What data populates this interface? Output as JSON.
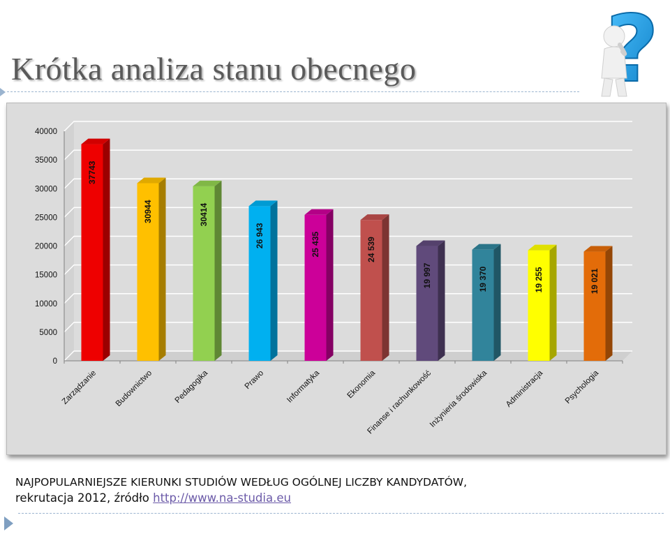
{
  "slide": {
    "title": "Krótka analiza stanu obecnego",
    "caption_line1": "NAJPOPULARNIEJSZE KIERUNKI STUDIÓW WEDŁUG OGÓLNEJ LICZBY KANDYDATÓW,",
    "caption_line2_text": "rekrutacja 2012, źródło ",
    "caption_link": "http://www.na-studia.eu",
    "question_mark": "?"
  },
  "colors": {
    "title": "#5a5a5a",
    "accent_line": "#9bb4cf",
    "chart_background": "#dcdcdc",
    "link": "#6b5aa8",
    "question_mark": "#1d9be0"
  },
  "chart_data": {
    "type": "bar",
    "style": "3d-columns",
    "categories": [
      "Zarządzanie",
      "Budownictwo",
      "Pedagogika",
      "Prawo",
      "Informatyka",
      "Ekonomia",
      "Finanse i rachunkowość",
      "Inżynieria środowiska",
      "Administracja",
      "Psychologia"
    ],
    "values": [
      37743,
      30944,
      30414,
      26943,
      25435,
      24539,
      19997,
      19370,
      19255,
      19021
    ],
    "value_labels": [
      "37743",
      "30944",
      "30414",
      "26 943",
      "25 435",
      "24 539",
      "19 997",
      "19 370",
      "19 255",
      "19 021"
    ],
    "bar_colors": [
      "#ee0000",
      "#ffc000",
      "#92d050",
      "#00b0f0",
      "#cc0099",
      "#c0504d",
      "#604a7b",
      "#31849b",
      "#ffff00",
      "#e36c09"
    ],
    "yticks": [
      "0",
      "5000",
      "10000",
      "15000",
      "20000",
      "25000",
      "30000",
      "35000",
      "40000"
    ],
    "ylim": [
      0,
      40000
    ],
    "grid": true,
    "legend": "none",
    "title": "",
    "xlabel": "",
    "ylabel": ""
  }
}
